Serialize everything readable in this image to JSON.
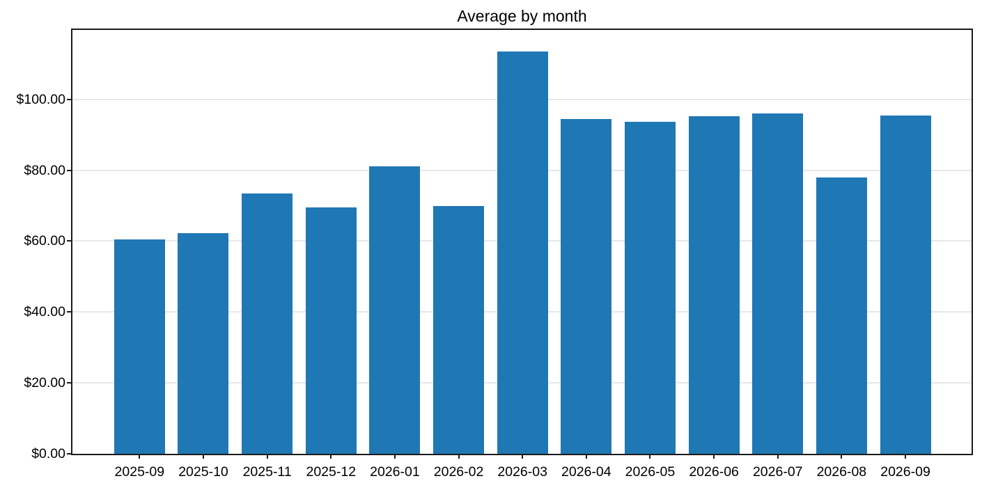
{
  "chart_data": {
    "type": "bar",
    "title": "Average by month",
    "xlabel": "",
    "ylabel": "",
    "categories": [
      "2025-09",
      "2025-10",
      "2025-11",
      "2025-12",
      "2026-01",
      "2026-02",
      "2026-03",
      "2026-04",
      "2026-05",
      "2026-06",
      "2026-07",
      "2026-08",
      "2026-09"
    ],
    "values": [
      60.5,
      62.3,
      73.5,
      69.6,
      81.1,
      69.9,
      113.5,
      94.5,
      93.7,
      95.2,
      96.0,
      78.0,
      95.5
    ],
    "value_unit": "USD",
    "y_ticks": [
      {
        "value": 0,
        "label": "$0.00"
      },
      {
        "value": 20,
        "label": "$20.00"
      },
      {
        "value": 40,
        "label": "$40.00"
      },
      {
        "value": 60,
        "label": "$60.00"
      },
      {
        "value": 80,
        "label": "$80.00"
      },
      {
        "value": 100,
        "label": "$100.00"
      }
    ],
    "ylim": [
      0,
      119.6
    ],
    "grid": true,
    "legend": null,
    "colors": {
      "bar": "#1f77b4",
      "gridline": "#e7e7e7",
      "spine": "#1a1a1a",
      "text": "#000000",
      "background": "#ffffff"
    }
  }
}
